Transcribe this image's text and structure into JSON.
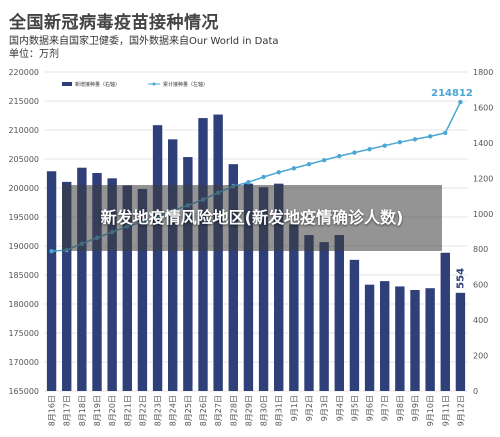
{
  "header": {
    "title": "全国新冠病毒疫苗接种情况",
    "subtitle": "国内数据来自国家卫健委，国外数据来自Our World in Data",
    "unit": "单位：万剂"
  },
  "overlay_text": "新发地疫情风险地区(新发地疫情确诊人数)",
  "colors": {
    "bar": "#2e3f79",
    "line": "#4ba7d3",
    "grid": "#e6e6e6",
    "highlight": "#4ba7d3"
  },
  "chart_data": {
    "type": "bar",
    "categories": [
      "8月16日",
      "8月17日",
      "8月18日",
      "8月19日",
      "8月20日",
      "8月21日",
      "8月22日",
      "8月23日",
      "8月24日",
      "8月25日",
      "8月26日",
      "8月27日",
      "8月28日",
      "8月29日",
      "8月30日",
      "8月31日",
      "9月1日",
      "9月2日",
      "9月3日",
      "9月4日",
      "9月5日",
      "9月6日",
      "9月7日",
      "9月8日",
      "9月9日",
      "9月10日",
      "9月11日",
      "9月12日"
    ],
    "series": [
      {
        "name": "新增接种量（右轴）",
        "axis": "right",
        "values": [
          1240,
          1180,
          1260,
          1230,
          1200,
          1160,
          1140,
          1500,
          1420,
          1320,
          1540,
          1560,
          1280,
          1170,
          1150,
          1170,
          940,
          880,
          840,
          880,
          740,
          600,
          620,
          590,
          570,
          580,
          780,
          554
        ]
      },
      {
        "name": "累计接种量（左轴）",
        "axis": "left",
        "values": [
          189100,
          189300,
          190400,
          191400,
          192400,
          193400,
          194100,
          195100,
          196100,
          197000,
          198000,
          199200,
          200300,
          201000,
          201900,
          202700,
          203400,
          204100,
          204800,
          205500,
          206100,
          206700,
          207300,
          207900,
          208400,
          208900,
          209500,
          214812
        ]
      }
    ],
    "y_left": {
      "min": 165000,
      "max": 220000,
      "ticks": [
        165000,
        170000,
        175000,
        180000,
        185000,
        190000,
        195000,
        200000,
        205000,
        210000,
        215000,
        220000
      ]
    },
    "y_right": {
      "min": 0,
      "max": 1800,
      "ticks": [
        0,
        200,
        400,
        600,
        800,
        1000,
        1200,
        1400,
        1600,
        1800
      ]
    },
    "data_labels": {
      "last_cumulative": "214812",
      "last_new": "554"
    },
    "legend_position": "top-left",
    "grid": true
  }
}
